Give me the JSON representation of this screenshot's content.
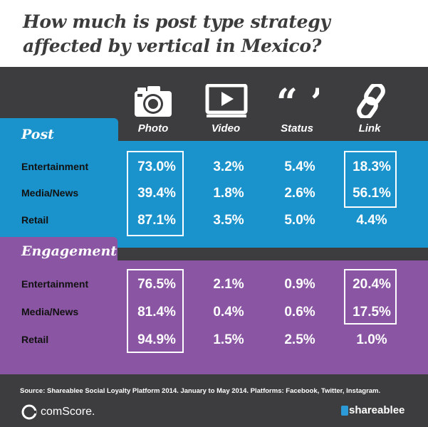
{
  "title": "How much is post type strategy affected by vertical in Mexico?",
  "columns": [
    {
      "label": "Photo",
      "icon": "camera-icon"
    },
    {
      "label": "Video",
      "icon": "video-player-icon"
    },
    {
      "label": "Status",
      "icon": "quote-icon"
    },
    {
      "label": "Link",
      "icon": "chain-link-icon"
    }
  ],
  "sections": [
    {
      "label": "Post",
      "color": "#1a92cc",
      "rows": [
        {
          "label": "Entertainment",
          "values": [
            "73.0%",
            "3.2%",
            "5.4%",
            "18.3%"
          ]
        },
        {
          "label": "Media/News",
          "values": [
            "39.4%",
            "1.8%",
            "2.6%",
            "56.1%"
          ]
        },
        {
          "label": "Retail",
          "values": [
            "87.1%",
            "3.5%",
            "5.0%",
            "4.4%"
          ]
        }
      ]
    },
    {
      "label": "Engagement",
      "color": "#8a55a3",
      "rows": [
        {
          "label": "Entertainment",
          "values": [
            "76.5%",
            "2.1%",
            "0.9%",
            "20.4%"
          ]
        },
        {
          "label": "Media/News",
          "values": [
            "81.4%",
            "0.4%",
            "0.6%",
            "17.5%"
          ]
        },
        {
          "label": "Retail",
          "values": [
            "94.9%",
            "1.5%",
            "2.5%",
            "1.0%"
          ]
        }
      ]
    }
  ],
  "footer": {
    "source": "Source: Shareablee Social Loyalty Platform 2014. January to May 2014.  Platforms: Facebook, Twitter, Instagram.",
    "logo_left": "comScore.",
    "logo_right": "shareablee"
  },
  "chart_data": {
    "type": "table",
    "title": "How much is post type strategy affected by vertical in Mexico?",
    "columns": [
      "Photo",
      "Video",
      "Status",
      "Link"
    ],
    "groups": [
      {
        "name": "Post",
        "rows": [
          "Entertainment",
          "Media/News",
          "Retail"
        ],
        "values": [
          [
            73.0,
            3.2,
            5.4,
            18.3
          ],
          [
            39.4,
            1.8,
            2.6,
            56.1
          ],
          [
            87.1,
            3.5,
            5.0,
            4.4
          ]
        ]
      },
      {
        "name": "Engagement",
        "rows": [
          "Entertainment",
          "Media/News",
          "Retail"
        ],
        "values": [
          [
            76.5,
            2.1,
            0.9,
            20.4
          ],
          [
            81.4,
            0.4,
            0.6,
            17.5
          ],
          [
            94.9,
            1.5,
            2.5,
            1.0
          ]
        ]
      }
    ],
    "unit": "%"
  }
}
